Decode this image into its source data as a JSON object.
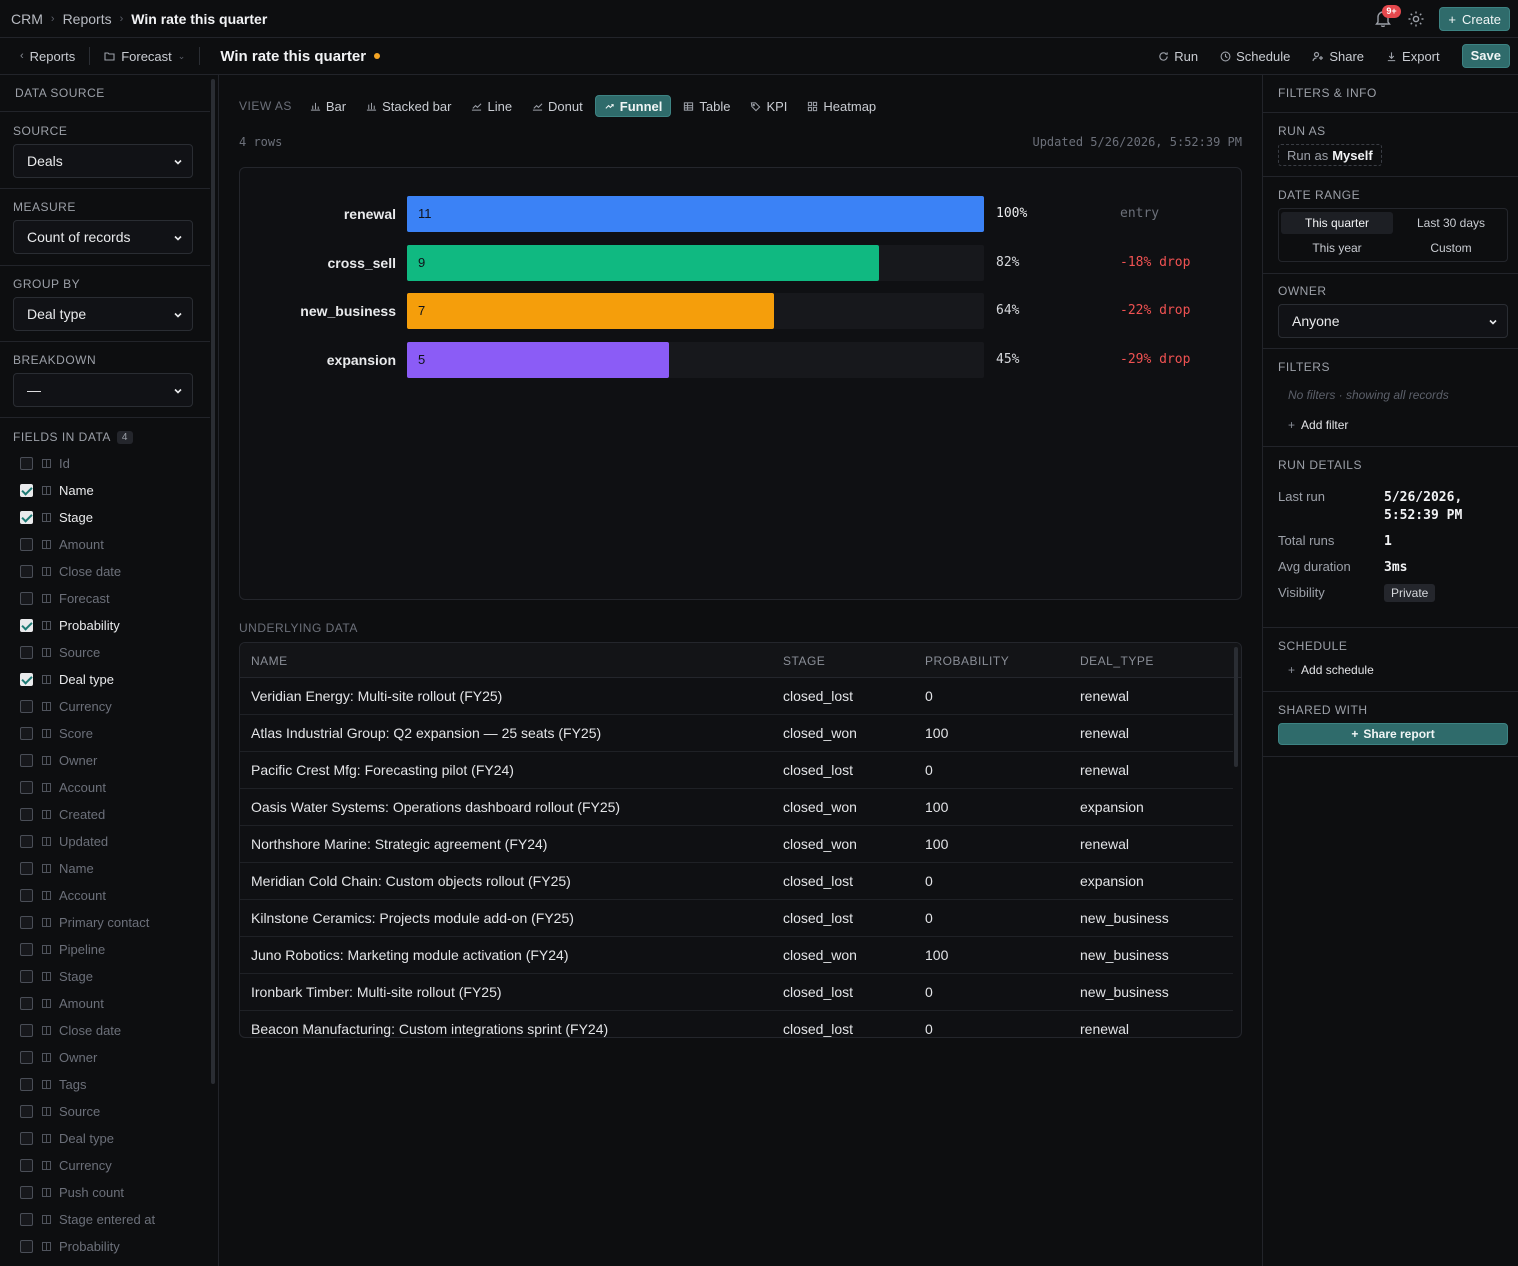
{
  "breadcrumb": {
    "root": "CRM",
    "section": "Reports",
    "current": "Win rate this quarter"
  },
  "notifications": {
    "badge": "9+"
  },
  "actions": {
    "create": "Create"
  },
  "subbar": {
    "reports": "Reports",
    "forecast": "Forecast",
    "title": "Win rate this quarter",
    "run": "Run",
    "schedule": "Schedule",
    "share": "Share",
    "export": "Export",
    "save": "Save"
  },
  "left": {
    "header": "DATA SOURCE",
    "source": {
      "label": "SOURCE",
      "value": "Deals"
    },
    "measure": {
      "label": "MEASURE",
      "value": "Count of records"
    },
    "group_by": {
      "label": "GROUP BY",
      "value": "Deal type"
    },
    "breakdown": {
      "label": "BREAKDOWN",
      "value": "—"
    },
    "fields_header": "FIELDS IN DATA",
    "fields_count": "4",
    "fields": [
      {
        "label": "Id",
        "checked": false
      },
      {
        "label": "Name",
        "checked": true
      },
      {
        "label": "Stage",
        "checked": true
      },
      {
        "label": "Amount",
        "checked": false
      },
      {
        "label": "Close date",
        "checked": false
      },
      {
        "label": "Forecast",
        "checked": false
      },
      {
        "label": "Probability",
        "checked": true
      },
      {
        "label": "Source",
        "checked": false
      },
      {
        "label": "Deal type",
        "checked": true
      },
      {
        "label": "Currency",
        "checked": false
      },
      {
        "label": "Score",
        "checked": false
      },
      {
        "label": "Owner",
        "checked": false
      },
      {
        "label": "Account",
        "checked": false
      },
      {
        "label": "Created",
        "checked": false
      },
      {
        "label": "Updated",
        "checked": false
      },
      {
        "label": "Name",
        "checked": false
      },
      {
        "label": "Account",
        "checked": false
      },
      {
        "label": "Primary contact",
        "checked": false
      },
      {
        "label": "Pipeline",
        "checked": false
      },
      {
        "label": "Stage",
        "checked": false
      },
      {
        "label": "Amount",
        "checked": false
      },
      {
        "label": "Close date",
        "checked": false
      },
      {
        "label": "Owner",
        "checked": false
      },
      {
        "label": "Tags",
        "checked": false
      },
      {
        "label": "Source",
        "checked": false
      },
      {
        "label": "Deal type",
        "checked": false
      },
      {
        "label": "Currency",
        "checked": false
      },
      {
        "label": "Push count",
        "checked": false
      },
      {
        "label": "Stage entered at",
        "checked": false
      },
      {
        "label": "Probability",
        "checked": false
      }
    ]
  },
  "view_as": {
    "label": "VIEW AS",
    "options": [
      "Bar",
      "Stacked bar",
      "Line",
      "Donut",
      "Funnel",
      "Table",
      "KPI",
      "Heatmap"
    ],
    "selected": "Funnel"
  },
  "meta": {
    "rows": "4 rows",
    "updated": "Updated 5/26/2026, 5:52:39 PM"
  },
  "chart_data": {
    "type": "bar",
    "orientation": "horizontal-funnel",
    "categories": [
      "renewal",
      "cross_sell",
      "new_business",
      "expansion"
    ],
    "values": [
      11,
      9,
      7,
      5
    ],
    "percent_labels": [
      "100%",
      "82%",
      "64%",
      "45%"
    ],
    "step_labels": [
      "entry",
      "-18% drop",
      "-22% drop",
      "-29% drop"
    ],
    "colors": [
      "#3b82f6",
      "#10b981",
      "#f59e0b",
      "#8b5cf6"
    ],
    "xlim": [
      0,
      11
    ]
  },
  "table": {
    "title": "UNDERLYING DATA",
    "columns": [
      "NAME",
      "STAGE",
      "PROBABILITY",
      "DEAL_TYPE"
    ],
    "rows": [
      [
        "Veridian Energy: Multi-site rollout (FY25)",
        "closed_lost",
        "0",
        "renewal"
      ],
      [
        "Atlas Industrial Group: Q2 expansion — 25 seats (FY25)",
        "closed_won",
        "100",
        "renewal"
      ],
      [
        "Pacific Crest Mfg: Forecasting pilot (FY24)",
        "closed_lost",
        "0",
        "renewal"
      ],
      [
        "Oasis Water Systems: Operations dashboard rollout (FY25)",
        "closed_won",
        "100",
        "expansion"
      ],
      [
        "Northshore Marine: Strategic agreement (FY24)",
        "closed_won",
        "100",
        "renewal"
      ],
      [
        "Meridian Cold Chain: Custom objects rollout (FY25)",
        "closed_lost",
        "0",
        "expansion"
      ],
      [
        "Kilnstone Ceramics: Projects module add-on (FY25)",
        "closed_lost",
        "0",
        "new_business"
      ],
      [
        "Juno Robotics: Marketing module activation (FY24)",
        "closed_won",
        "100",
        "new_business"
      ],
      [
        "Ironbark Timber: Multi-site rollout (FY25)",
        "closed_lost",
        "0",
        "new_business"
      ],
      [
        "Beacon Manufacturing: Custom integrations sprint (FY24)",
        "closed_lost",
        "0",
        "renewal"
      ]
    ]
  },
  "right": {
    "header": "FILTERS & INFO",
    "run_as": {
      "label": "RUN AS",
      "prefix": "Run as",
      "value": "Myself"
    },
    "date_range": {
      "label": "DATE RANGE",
      "options": [
        "This quarter",
        "Last 30 days",
        "This year",
        "Custom"
      ],
      "selected": "This quarter"
    },
    "owner": {
      "label": "OWNER",
      "value": "Anyone"
    },
    "filters": {
      "label": "FILTERS",
      "empty": "No filters · showing all records",
      "add": "Add filter"
    },
    "run_details": {
      "label": "RUN DETAILS",
      "last_run_label": "Last run",
      "last_run_line1": "5/26/2026,",
      "last_run_line2": "5:52:39 PM",
      "total_runs_label": "Total runs",
      "total_runs": "1",
      "avg_duration_label": "Avg duration",
      "avg_duration": "3ms",
      "visibility_label": "Visibility",
      "visibility": "Private"
    },
    "schedule": {
      "label": "SCHEDULE",
      "add": "Add schedule"
    },
    "shared_with": {
      "label": "SHARED WITH",
      "button": "Share report"
    }
  },
  "colors": {
    "accent": "#2f6b6b",
    "drop": "#f05252",
    "muted": "#6c707a"
  }
}
